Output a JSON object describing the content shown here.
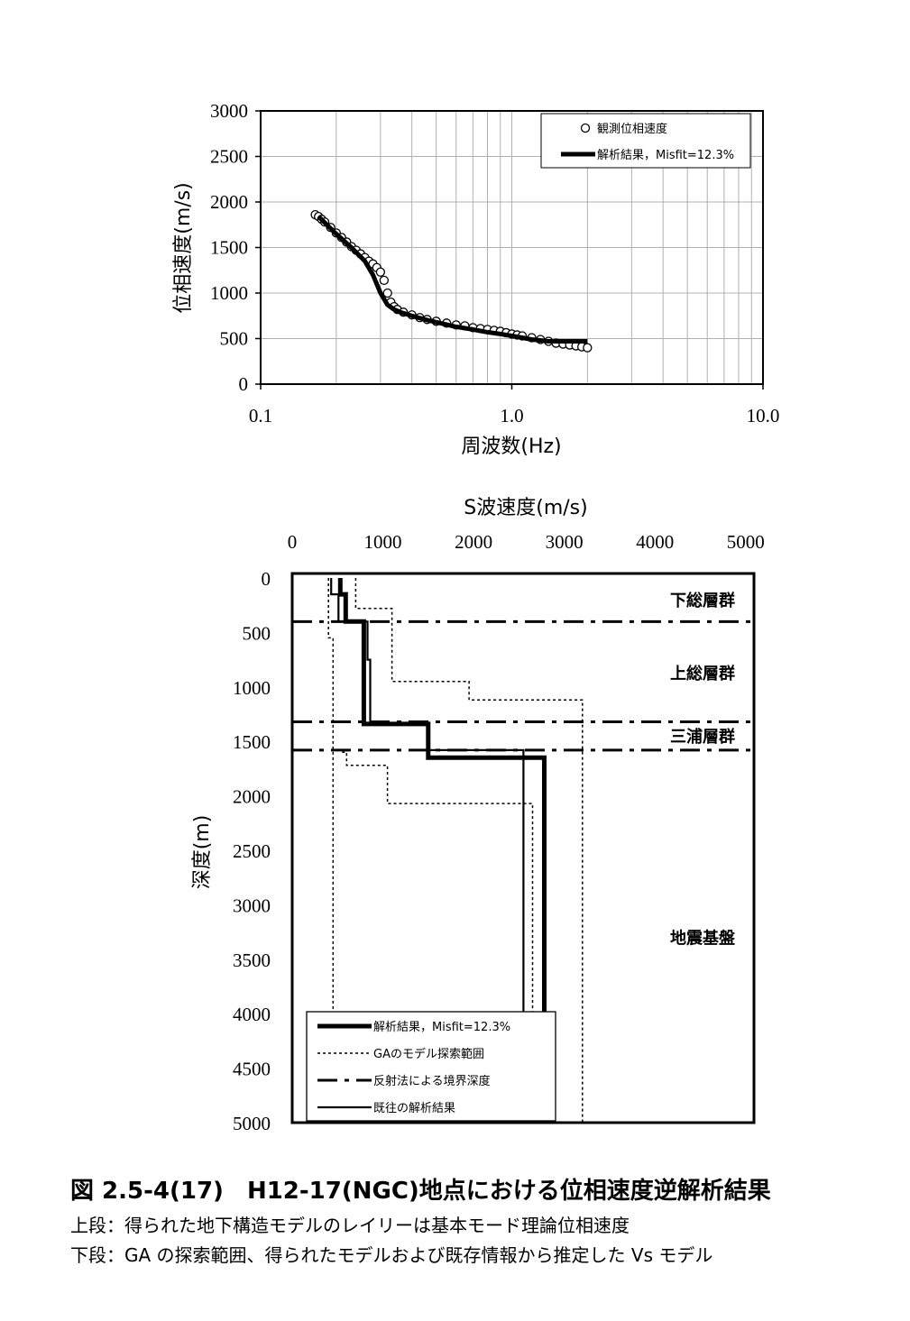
{
  "caption": {
    "title": "図 2.5-4(17)　H12-17(NGC)地点における位相速度逆解析結果",
    "line1": "上段：得られた地下構造モデルのレイリーは基本モード理論位相速度",
    "line2": "下段：GA の探索範囲、得られたモデルおよび既存情報から推定した Vs モデル"
  },
  "chart_data": [
    {
      "type": "scatter",
      "xlabel": "周波数(Hz)",
      "ylabel": "位相速度(m/s)",
      "xscale": "log",
      "xlim": [
        0.1,
        10.0
      ],
      "ylim": [
        0,
        3000
      ],
      "xticks": [
        "0.1",
        "1.0",
        "10.0"
      ],
      "yticks": [
        "0",
        "500",
        "1000",
        "1500",
        "2000",
        "2500",
        "3000"
      ],
      "grid": true,
      "legend_position": "top-right",
      "series": [
        {
          "name": "観測位相速度",
          "style": "open-circle",
          "x": [
            0.165,
            0.17,
            0.175,
            0.18,
            0.19,
            0.2,
            0.21,
            0.22,
            0.23,
            0.24,
            0.25,
            0.26,
            0.27,
            0.28,
            0.29,
            0.3,
            0.31,
            0.32,
            0.33,
            0.34,
            0.35,
            0.37,
            0.4,
            0.43,
            0.46,
            0.5,
            0.55,
            0.6,
            0.65,
            0.7,
            0.75,
            0.8,
            0.85,
            0.9,
            0.95,
            1.0,
            1.05,
            1.1,
            1.2,
            1.3,
            1.4,
            1.5,
            1.6,
            1.7,
            1.8,
            1.9,
            2.0
          ],
          "y": [
            1860,
            1840,
            1810,
            1780,
            1720,
            1660,
            1610,
            1560,
            1510,
            1470,
            1430,
            1390,
            1350,
            1320,
            1280,
            1230,
            1140,
            1000,
            900,
            850,
            820,
            790,
            760,
            730,
            710,
            690,
            670,
            650,
            640,
            620,
            610,
            600,
            590,
            580,
            565,
            550,
            540,
            530,
            510,
            490,
            470,
            450,
            440,
            430,
            420,
            410,
            400
          ]
        },
        {
          "name": "解析結果，Misfit=12.3%",
          "style": "thick-line",
          "x": [
            0.17,
            0.2,
            0.23,
            0.26,
            0.28,
            0.3,
            0.32,
            0.34,
            0.36,
            0.4,
            0.45,
            0.5,
            0.6,
            0.7,
            0.8,
            0.9,
            1.0,
            1.1,
            1.2,
            1.3,
            1.4,
            1.6,
            1.8,
            2.0
          ],
          "y": [
            1840,
            1650,
            1500,
            1350,
            1200,
            1000,
            870,
            820,
            790,
            750,
            710,
            680,
            630,
            600,
            570,
            550,
            530,
            510,
            490,
            480,
            470,
            470,
            470,
            470
          ]
        }
      ]
    },
    {
      "type": "line",
      "xlabel": "S波速度(m/s)",
      "ylabel": "深度(m)",
      "xlim": [
        0,
        5000
      ],
      "ylim": [
        5000,
        0
      ],
      "x_axis_position": "top",
      "xticks": [
        "0",
        "1000",
        "2000",
        "3000",
        "4000",
        "5000"
      ],
      "yticks": [
        "0",
        "500",
        "1000",
        "1500",
        "2000",
        "2500",
        "3000",
        "3500",
        "4000",
        "4500",
        "5000"
      ],
      "grid": false,
      "legend_position": "bottom-left",
      "layer_labels": [
        {
          "text": "下総層群",
          "depth": 200
        },
        {
          "text": "上総層群",
          "depth": 870
        },
        {
          "text": "三浦層群",
          "depth": 1450
        },
        {
          "text": "地震基盤",
          "depth": 3300
        }
      ],
      "series": [
        {
          "name": "解析結果，Misfit=12.3%",
          "style": "thick",
          "points": [
            [
              530,
              0
            ],
            [
              530,
              150
            ],
            [
              590,
              150
            ],
            [
              590,
              400
            ],
            [
              790,
              400
            ],
            [
              790,
              1340
            ],
            [
              1500,
              1340
            ],
            [
              1500,
              1650
            ],
            [
              2780,
              1650
            ],
            [
              2780,
              5000
            ]
          ]
        },
        {
          "name": "GAのモデル探索範囲",
          "style": "dotted",
          "points": [
            [
              400,
              0
            ],
            [
              400,
              550
            ],
            [
              450,
              550
            ],
            [
              450,
              5000
            ]
          ]
        },
        {
          "name": "GAのモデル探索範囲",
          "style": "dotted",
          "points": [
            [
              700,
              0
            ],
            [
              700,
              280
            ],
            [
              1100,
              280
            ],
            [
              1100,
              950
            ],
            [
              1950,
              950
            ],
            [
              1950,
              1120
            ],
            [
              3200,
              1120
            ],
            [
              3200,
              5000
            ]
          ]
        },
        {
          "name": "GAのモデル探索範囲",
          "style": "dotted",
          "points": [
            [
              550,
              1600
            ],
            [
              600,
              1600
            ],
            [
              600,
              1720
            ],
            [
              1050,
              1720
            ],
            [
              1050,
              2070
            ],
            [
              2650,
              2070
            ],
            [
              2650,
              5000
            ]
          ]
        },
        {
          "name": "反射法による境界深度",
          "style": "dash-dot",
          "depths": [
            400,
            1320,
            1580
          ]
        },
        {
          "name": "既往の解析結果",
          "style": "thin",
          "points": [
            [
              430,
              0
            ],
            [
              430,
              150
            ],
            [
              510,
              150
            ],
            [
              510,
              400
            ],
            [
              830,
              400
            ],
            [
              830,
              750
            ],
            [
              860,
              750
            ],
            [
              860,
              1330
            ],
            [
              1500,
              1330
            ],
            [
              1500,
              1580
            ],
            [
              2550,
              1580
            ],
            [
              2550,
              5000
            ]
          ]
        }
      ]
    }
  ]
}
